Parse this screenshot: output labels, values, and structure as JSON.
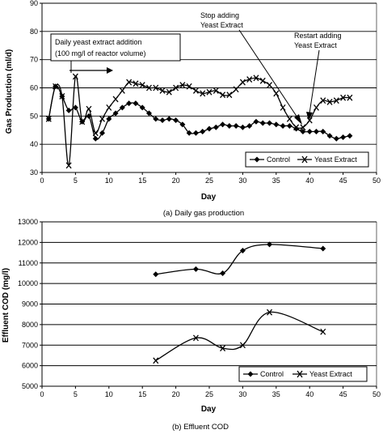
{
  "chart_data": [
    {
      "type": "line",
      "caption": "(a) Daily gas production",
      "xlabel": "Day",
      "ylabel": "Gas Production (ml/d)",
      "xlim": [
        0,
        50
      ],
      "ylim": [
        30,
        90
      ],
      "x_ticks": [
        0,
        5,
        10,
        15,
        20,
        25,
        30,
        35,
        40,
        45,
        50
      ],
      "y_ticks": [
        30,
        40,
        50,
        60,
        70,
        80,
        90
      ],
      "grid": "horizontal",
      "legend": "bottom-right",
      "annotations": {
        "addition_line1": "Daily yeast extract addition",
        "addition_line2": "(100 mg/l of reactor volume)",
        "stop_line1": "Stop adding",
        "stop_line2": "Yeast Extract",
        "restart_line1": "Restart adding",
        "restart_line2": "Yeast Extract"
      },
      "series": [
        {
          "name": "Control",
          "marker": "diamond",
          "x": [
            1,
            2,
            3,
            4,
            5,
            6,
            7,
            8,
            9,
            10,
            11,
            12,
            13,
            14,
            15,
            16,
            17,
            18,
            19,
            20,
            21,
            22,
            23,
            24,
            25,
            26,
            27,
            28,
            29,
            30,
            31,
            32,
            33,
            34,
            35,
            36,
            37,
            38,
            39,
            40,
            41,
            42,
            43,
            44,
            45,
            46
          ],
          "values": [
            49,
            60.5,
            57,
            52,
            53,
            48,
            50,
            42,
            44,
            49,
            51,
            53,
            54.5,
            54.5,
            53,
            51,
            49,
            48.5,
            49,
            48.5,
            47,
            44,
            44,
            44.5,
            45.5,
            46,
            47,
            46.5,
            46.5,
            46,
            46.5,
            48,
            47.5,
            47.5,
            47,
            46.5,
            46.5,
            45.5,
            44.5,
            44.5,
            44.5,
            44.5,
            43,
            42,
            42.5,
            43
          ]
        },
        {
          "name": "Yeast Extract",
          "marker": "x",
          "x": [
            1,
            2,
            3,
            4,
            5,
            6,
            7,
            8,
            9,
            10,
            11,
            12,
            13,
            14,
            15,
            16,
            17,
            18,
            19,
            20,
            21,
            22,
            23,
            24,
            25,
            26,
            27,
            28,
            29,
            30,
            31,
            32,
            33,
            34,
            35,
            36,
            37,
            38,
            39,
            40,
            41,
            42,
            43,
            44,
            45,
            46
          ],
          "values": [
            49,
            60.5,
            57,
            32.5,
            64,
            48,
            52.5,
            44,
            49,
            53,
            56,
            59,
            62,
            61.5,
            61,
            60,
            60,
            59,
            58.5,
            60,
            61,
            60.5,
            59,
            58,
            58.5,
            59,
            57.5,
            57.5,
            59.5,
            62,
            63,
            63.5,
            62.5,
            61,
            58,
            53,
            49,
            46,
            46,
            48.5,
            53,
            55.5,
            55,
            55.5,
            56.5,
            56.5
          ]
        }
      ]
    },
    {
      "type": "line",
      "caption": "(b) Effluent COD",
      "xlabel": "Day",
      "ylabel": "Effluent COD (mg/l)",
      "xlim": [
        0,
        50
      ],
      "ylim": [
        5000,
        13000
      ],
      "x_ticks": [
        0,
        5,
        10,
        15,
        20,
        25,
        30,
        35,
        40,
        45,
        50
      ],
      "y_ticks": [
        5000,
        6000,
        7000,
        8000,
        9000,
        10000,
        11000,
        12000,
        13000
      ],
      "grid": "horizontal",
      "legend": "bottom-right",
      "series": [
        {
          "name": "Control",
          "marker": "diamond",
          "x": [
            17,
            23,
            27,
            30,
            34,
            42
          ],
          "values": [
            10450,
            10700,
            10500,
            11600,
            11900,
            11700
          ]
        },
        {
          "name": "Yeast Extract",
          "marker": "x",
          "x": [
            17,
            23,
            27,
            30,
            34,
            42
          ],
          "values": [
            6250,
            7350,
            6850,
            7000,
            8600,
            7650
          ]
        }
      ]
    }
  ]
}
